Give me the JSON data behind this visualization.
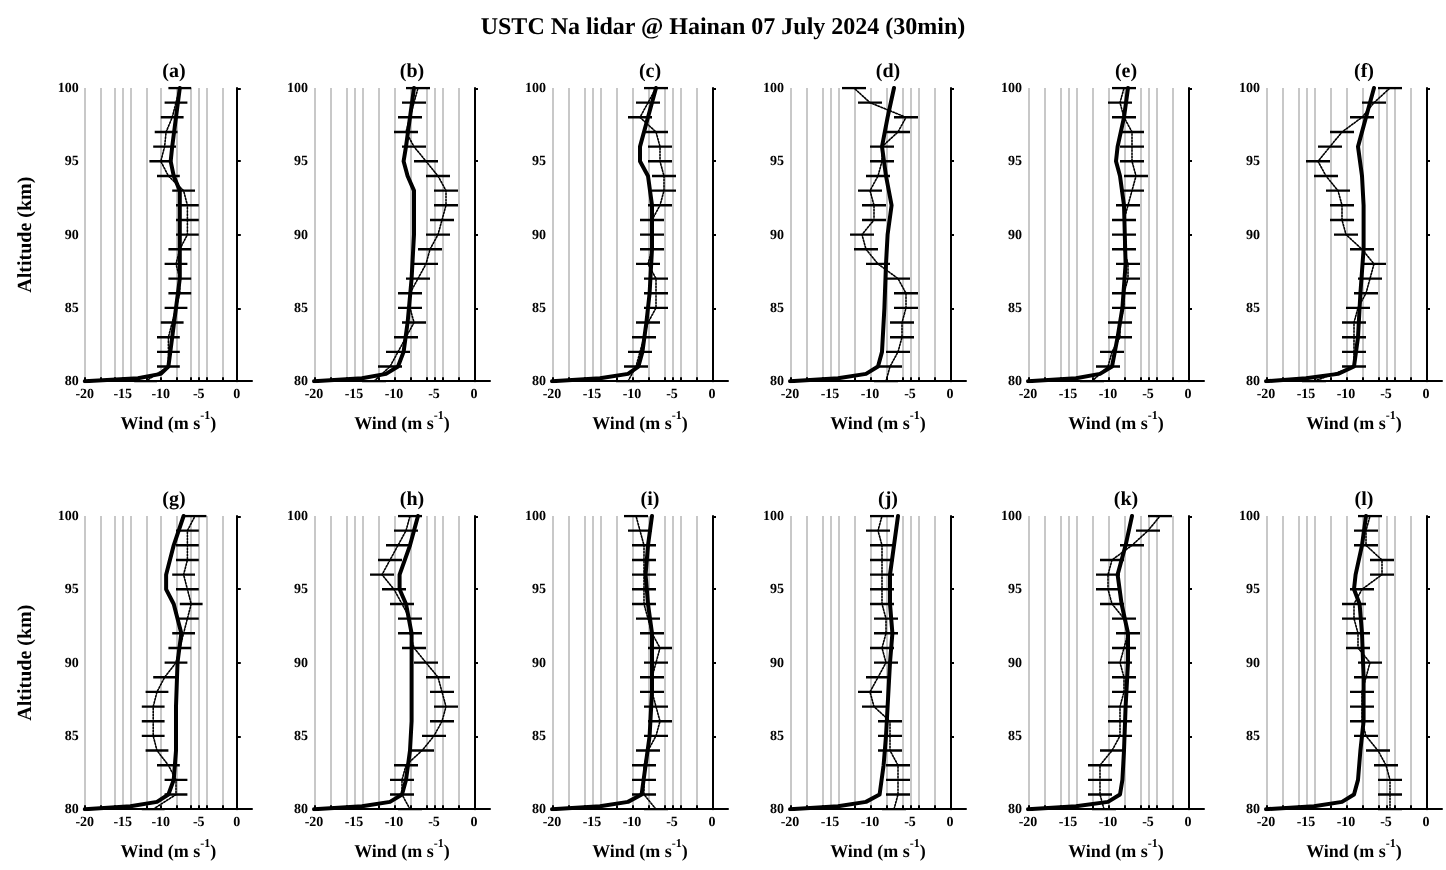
{
  "chart_data": [
    {
      "type": "line",
      "title": "(a)",
      "annotations": [
        "USTC Na lidar @ Hainan 07 July 2024 (30min)"
      ],
      "xlabel": "Wind (m s$^{-1}$)",
      "ylabel": "Altitude (km)",
      "xlim": [
        -20,
        2
      ],
      "xticks": [
        -20,
        {
          "value": -18,
          "label": null
        },
        {
          "value": -16,
          "label": null
        },
        -15,
        {
          "value": -14,
          "label": null
        },
        {
          "value": -12,
          "label": null
        },
        -10,
        {
          "value": -8,
          "label": null
        },
        {
          "value": -6,
          "label": null
        },
        -5,
        {
          "value": -4,
          "label": null
        },
        {
          "value": -2,
          "label": null
        },
        0
      ],
      "ylim": [
        80,
        100
      ],
      "yticks": [
        80,
        85,
        90,
        95,
        100
      ],
      "grid": "x",
      "series": [
        {
          "color": "#000000",
          "line_style": "dotted",
          "values": [
            80,
            81,
            82,
            83,
            84,
            85,
            86,
            87,
            88,
            89,
            90,
            91,
            92,
            93,
            94,
            95,
            96,
            97,
            98,
            99,
            100
          ],
          "x": [
            -12,
            -9,
            -9,
            -9,
            -8.5,
            -8,
            -7.5,
            -7.5,
            -8,
            -7.5,
            -6.5,
            -6.5,
            -6.5,
            -7,
            -9,
            -10,
            -9.5,
            -9.3,
            -8.5,
            -8,
            -7.5
          ],
          "xerrors": [
            1.5,
            1.5,
            1.5,
            1.5,
            1.5,
            1.5,
            1.5,
            1.5,
            1.5,
            1.5,
            1.5,
            1.5,
            1.5,
            1.5,
            1.5,
            1.5,
            1.5,
            1.5,
            1.5,
            1.5,
            1.5
          ]
        },
        {
          "color": "#000000",
          "line_style": "solid",
          "values": [
            80,
            80.2,
            80.5,
            81,
            83,
            85,
            87,
            90,
            93,
            94,
            95,
            96,
            98,
            100
          ],
          "x": [
            -20,
            -13,
            -10,
            -9,
            -8.5,
            -8,
            -7.5,
            -7.5,
            -7.5,
            -8.3,
            -8.7,
            -8.5,
            -8,
            -7.5
          ]
        }
      ]
    },
    {
      "type": "line",
      "title": "(b)",
      "xlabel": "Wind (m s$^{-1}$)",
      "xlim": [
        -20,
        2
      ],
      "xticks": [
        -20,
        {
          "value": -18,
          "label": null
        },
        {
          "value": -16,
          "label": null
        },
        -15,
        {
          "value": -14,
          "label": null
        },
        {
          "value": -12,
          "label": null
        },
        -10,
        {
          "value": -8,
          "label": null
        },
        {
          "value": -6,
          "label": null
        },
        -5,
        {
          "value": -4,
          "label": null
        },
        {
          "value": -2,
          "label": null
        },
        0
      ],
      "ylim": [
        80,
        100
      ],
      "yticks": [
        80,
        85,
        90,
        95,
        100
      ],
      "grid": "x",
      "series": [
        {
          "color": "#000000",
          "line_style": "dotted",
          "values": [
            80,
            81,
            82,
            83,
            84,
            85,
            86,
            87,
            88,
            89,
            90,
            91,
            92,
            93,
            94,
            95,
            96,
            97,
            98,
            99,
            100
          ],
          "x": [
            -12.5,
            -10.5,
            -9.5,
            -8.5,
            -7.5,
            -8,
            -8,
            -7,
            -6,
            -5.5,
            -4.5,
            -4,
            -3.5,
            -3.5,
            -4.5,
            -6,
            -7.5,
            -8.5,
            -8,
            -7.5,
            -7
          ],
          "xerrors": [
            1.5,
            1.5,
            1.5,
            1.5,
            1.5,
            1.5,
            1.5,
            1.5,
            1.5,
            1.5,
            1.5,
            1.5,
            1.5,
            1.5,
            1.5,
            1.5,
            1.5,
            1.5,
            1.5,
            1.5,
            1.5
          ]
        },
        {
          "color": "#000000",
          "line_style": "solid",
          "values": [
            80,
            80.2,
            80.5,
            81,
            82,
            84,
            87,
            90,
            93,
            94,
            95,
            96,
            98,
            100
          ],
          "x": [
            -20,
            -14,
            -11,
            -9.5,
            -8.8,
            -8.3,
            -7.8,
            -7.5,
            -7.5,
            -8.3,
            -8.8,
            -8.5,
            -8,
            -7.5
          ]
        }
      ]
    },
    {
      "type": "line",
      "title": "(c)",
      "xlabel": "Wind (m s$^{-1}$)",
      "xlim": [
        -20,
        2
      ],
      "xticks": [
        -20,
        {
          "value": -18,
          "label": null
        },
        {
          "value": -16,
          "label": null
        },
        -15,
        {
          "value": -14,
          "label": null
        },
        {
          "value": -12,
          "label": null
        },
        -10,
        {
          "value": -8,
          "label": null
        },
        {
          "value": -6,
          "label": null
        },
        -5,
        {
          "value": -4,
          "label": null
        },
        {
          "value": -2,
          "label": null
        },
        0
      ],
      "ylim": [
        80,
        100
      ],
      "yticks": [
        80,
        85,
        90,
        95,
        100
      ],
      "grid": "x",
      "series": [
        {
          "color": "#000000",
          "line_style": "dotted",
          "values": [
            80,
            81,
            82,
            83,
            84,
            85,
            86,
            87,
            88,
            89,
            90,
            91,
            92,
            93,
            94,
            95,
            96,
            97,
            98,
            99,
            100
          ],
          "x": [
            -10.5,
            -9.5,
            -9,
            -8.5,
            -8,
            -7,
            -7,
            -7,
            -8,
            -7.5,
            -7.5,
            -7.5,
            -6.5,
            -6,
            -6,
            -6.5,
            -6.5,
            -7,
            -9,
            -8,
            -7
          ],
          "xerrors": [
            1.5,
            1.5,
            1.5,
            1.5,
            1.5,
            1.5,
            1.5,
            1.5,
            1.5,
            1.5,
            1.5,
            1.5,
            1.5,
            1.5,
            1.5,
            1.5,
            1.5,
            1.5,
            1.5,
            1.5,
            1.5
          ]
        },
        {
          "color": "#000000",
          "line_style": "solid",
          "values": [
            80,
            80.2,
            80.5,
            81,
            82,
            84,
            86,
            89,
            92,
            94,
            95,
            96,
            98,
            100
          ],
          "x": [
            -20,
            -14,
            -10.5,
            -9.2,
            -8.7,
            -8.2,
            -7.8,
            -7.5,
            -7.5,
            -8,
            -9,
            -9,
            -8,
            -7
          ]
        }
      ]
    },
    {
      "type": "line",
      "title": "(d)",
      "xlabel": "Wind (m s$^{-1}$)",
      "xlim": [
        -20,
        2
      ],
      "xticks": [
        -20,
        {
          "value": -18,
          "label": null
        },
        {
          "value": -16,
          "label": null
        },
        -15,
        {
          "value": -14,
          "label": null
        },
        {
          "value": -12,
          "label": null
        },
        -10,
        {
          "value": -8,
          "label": null
        },
        {
          "value": -6,
          "label": null
        },
        -5,
        {
          "value": -4,
          "label": null
        },
        {
          "value": -2,
          "label": null
        },
        0
      ],
      "ylim": [
        80,
        100
      ],
      "yticks": [
        80,
        85,
        90,
        95,
        100
      ],
      "grid": "x",
      "series": [
        {
          "color": "#000000",
          "line_style": "dotted",
          "values": [
            80,
            81,
            82,
            83,
            84,
            85,
            86,
            87,
            88,
            89,
            90,
            91,
            92,
            93,
            94,
            95,
            96,
            97,
            98,
            99,
            100
          ],
          "x": [
            -8,
            -7.5,
            -6.5,
            -6,
            -6,
            -5.5,
            -5.5,
            -6.5,
            -9,
            -10.5,
            -11,
            -9.5,
            -9.5,
            -10,
            -9,
            -8.5,
            -8.5,
            -6.5,
            -5.5,
            -10,
            -12
          ],
          "xerrors": [
            1.5,
            1.5,
            1.5,
            1.5,
            1.5,
            1.5,
            1.5,
            1.5,
            1.5,
            1.5,
            1.5,
            1.5,
            1.5,
            1.5,
            1.5,
            1.5,
            1.5,
            1.5,
            1.5,
            1.5,
            1.5
          ]
        },
        {
          "color": "#000000",
          "line_style": "solid",
          "values": [
            80,
            80.2,
            80.5,
            81,
            82,
            85,
            88,
            90,
            92,
            94,
            96,
            98,
            100
          ],
          "x": [
            -20,
            -14,
            -10.5,
            -9,
            -8.5,
            -8.2,
            -8,
            -7.8,
            -7.3,
            -8,
            -8.5,
            -7.8,
            -7
          ]
        }
      ]
    },
    {
      "type": "line",
      "title": "(e)",
      "xlabel": "Wind (m s$^{-1}$)",
      "xlim": [
        -20,
        2
      ],
      "xticks": [
        -20,
        {
          "value": -18,
          "label": null
        },
        {
          "value": -16,
          "label": null
        },
        -15,
        {
          "value": -14,
          "label": null
        },
        {
          "value": -12,
          "label": null
        },
        -10,
        {
          "value": -8,
          "label": null
        },
        {
          "value": -6,
          "label": null
        },
        -5,
        {
          "value": -4,
          "label": null
        },
        {
          "value": -2,
          "label": null
        },
        0
      ],
      "ylim": [
        80,
        100
      ],
      "yticks": [
        80,
        85,
        90,
        95,
        100
      ],
      "grid": "x",
      "series": [
        {
          "color": "#000000",
          "line_style": "dotted",
          "values": [
            80,
            81,
            82,
            83,
            84,
            85,
            86,
            87,
            88,
            89,
            90,
            91,
            92,
            93,
            94,
            95,
            96,
            97,
            98,
            99,
            100
          ],
          "x": [
            -12,
            -10,
            -9.5,
            -8.5,
            -8.5,
            -8,
            -8,
            -7.5,
            -7.5,
            -8,
            -8,
            -8,
            -7.5,
            -7,
            -6.5,
            -7,
            -7,
            -7,
            -8,
            -8.5,
            -8
          ],
          "xerrors": [
            1.5,
            1.5,
            1.5,
            1.5,
            1.5,
            1.5,
            1.5,
            1.5,
            1.5,
            1.5,
            1.5,
            1.5,
            1.5,
            1.5,
            1.5,
            1.5,
            1.5,
            1.5,
            1.5,
            1.5,
            1.5
          ]
        },
        {
          "color": "#000000",
          "line_style": "solid",
          "values": [
            80,
            80.2,
            80.5,
            81,
            83,
            85,
            88,
            92,
            94,
            95,
            96,
            98,
            100
          ],
          "x": [
            -20,
            -14,
            -11,
            -9.5,
            -8.8,
            -8.2,
            -7.8,
            -8,
            -8.5,
            -9,
            -8.8,
            -8,
            -7.5
          ]
        }
      ]
    },
    {
      "type": "line",
      "title": "(f)",
      "xlabel": "Wind (m s$^{-1}$)",
      "xlim": [
        -20,
        2
      ],
      "xticks": [
        -20,
        {
          "value": -18,
          "label": null
        },
        {
          "value": -16,
          "label": null
        },
        -15,
        {
          "value": -14,
          "label": null
        },
        {
          "value": -12,
          "label": null
        },
        -10,
        {
          "value": -8,
          "label": null
        },
        {
          "value": -6,
          "label": null
        },
        -5,
        {
          "value": -4,
          "label": null
        },
        {
          "value": -2,
          "label": null
        },
        0
      ],
      "ylim": [
        80,
        100
      ],
      "yticks": [
        80,
        85,
        90,
        95,
        100
      ],
      "grid": "x",
      "series": [
        {
          "color": "#000000",
          "line_style": "dotted",
          "values": [
            80,
            81,
            82,
            83,
            84,
            85,
            86,
            87,
            88,
            89,
            90,
            91,
            92,
            93,
            94,
            95,
            96,
            97,
            98,
            99,
            100
          ],
          "x": [
            -14,
            -9,
            -9,
            -9,
            -9,
            -8.5,
            -7.5,
            -7,
            -6.5,
            -8,
            -10,
            -10.5,
            -10.5,
            -11,
            -12.5,
            -13.5,
            -12,
            -10.5,
            -8,
            -6.5,
            -4.5
          ],
          "xerrors": [
            1.5,
            1.5,
            1.5,
            1.5,
            1.5,
            1.5,
            1.5,
            1.5,
            1.5,
            1.5,
            1.5,
            1.5,
            1.5,
            1.5,
            1.5,
            1.5,
            1.5,
            1.5,
            1.5,
            1.5,
            1.5
          ]
        },
        {
          "color": "#000000",
          "line_style": "solid",
          "values": [
            80,
            80.2,
            80.5,
            81,
            83,
            86,
            89,
            92,
            94,
            96,
            98,
            100
          ],
          "x": [
            -20,
            -15,
            -11,
            -9,
            -8.5,
            -8.2,
            -7.8,
            -7.8,
            -8,
            -8.5,
            -7.5,
            -6.5
          ]
        }
      ]
    },
    {
      "type": "line",
      "title": "(g)",
      "xlabel": "Wind (m s$^{-1}$)",
      "ylabel": "Altitude (km)",
      "xlim": [
        -20,
        2
      ],
      "xticks": [
        -20,
        {
          "value": -18,
          "label": null
        },
        {
          "value": -16,
          "label": null
        },
        -15,
        {
          "value": -14,
          "label": null
        },
        {
          "value": -12,
          "label": null
        },
        -10,
        {
          "value": -8,
          "label": null
        },
        {
          "value": -6,
          "label": null
        },
        -5,
        {
          "value": -4,
          "label": null
        },
        {
          "value": -2,
          "label": null
        },
        0
      ],
      "ylim": [
        80,
        100
      ],
      "yticks": [
        80,
        85,
        90,
        95,
        100
      ],
      "grid": "x",
      "series": [
        {
          "color": "#000000",
          "line_style": "dotted",
          "values": [
            80,
            81,
            82,
            83,
            84,
            85,
            86,
            87,
            88,
            89,
            90,
            91,
            92,
            93,
            94,
            95,
            96,
            97,
            98,
            99,
            100
          ],
          "x": [
            -11,
            -8,
            -8,
            -9,
            -10.5,
            -11,
            -11,
            -11,
            -10.5,
            -9.5,
            -8,
            -7.5,
            -7,
            -6.5,
            -6,
            -6.5,
            -7,
            -6.5,
            -6.5,
            -6.5,
            -5.5
          ],
          "xerrors": [
            1.5,
            1.5,
            1.5,
            1.5,
            1.5,
            1.5,
            1.5,
            1.5,
            1.5,
            1.5,
            1.5,
            1.5,
            1.5,
            1.5,
            1.5,
            1.5,
            1.5,
            1.5,
            1.5,
            1.5,
            1.5
          ]
        },
        {
          "color": "#000000",
          "line_style": "solid",
          "values": [
            80,
            80.2,
            80.5,
            81,
            82,
            84,
            87,
            90,
            92,
            94,
            95,
            96,
            98,
            100
          ],
          "x": [
            -20,
            -14,
            -10.5,
            -9,
            -8.3,
            -8,
            -8,
            -7.8,
            -7.3,
            -8.3,
            -9.3,
            -9.3,
            -8.3,
            -7
          ]
        }
      ]
    },
    {
      "type": "line",
      "title": "(h)",
      "xlabel": "Wind (m s$^{-1}$)",
      "xlim": [
        -20,
        2
      ],
      "xticks": [
        -20,
        {
          "value": -18,
          "label": null
        },
        {
          "value": -16,
          "label": null
        },
        -15,
        {
          "value": -14,
          "label": null
        },
        {
          "value": -12,
          "label": null
        },
        -10,
        {
          "value": -8,
          "label": null
        },
        {
          "value": -6,
          "label": null
        },
        -5,
        {
          "value": -4,
          "label": null
        },
        {
          "value": -2,
          "label": null
        },
        0
      ],
      "ylim": [
        80,
        100
      ],
      "yticks": [
        80,
        85,
        90,
        95,
        100
      ],
      "grid": "x",
      "series": [
        {
          "color": "#000000",
          "line_style": "dotted",
          "values": [
            80,
            81,
            82,
            83,
            84,
            85,
            86,
            87,
            88,
            89,
            90,
            91,
            92,
            93,
            94,
            95,
            96,
            97,
            98,
            99,
            100
          ],
          "x": [
            -8,
            -9,
            -9,
            -8.5,
            -6.5,
            -5,
            -4,
            -3.5,
            -4,
            -4.5,
            -6,
            -7.5,
            -8,
            -8,
            -9,
            -10,
            -11.5,
            -10.5,
            -9.5,
            -8.5,
            -8
          ],
          "xerrors": [
            1.5,
            1.5,
            1.5,
            1.5,
            1.5,
            1.5,
            1.5,
            1.5,
            1.5,
            1.5,
            1.5,
            1.5,
            1.5,
            1.5,
            1.5,
            1.5,
            1.5,
            1.5,
            1.5,
            1.5,
            1.5
          ]
        },
        {
          "color": "#000000",
          "line_style": "solid",
          "values": [
            80,
            80.2,
            80.5,
            81,
            82,
            84,
            86,
            89,
            92,
            94,
            95,
            96,
            98,
            100
          ],
          "x": [
            -20,
            -14,
            -10.5,
            -9,
            -8.5,
            -8,
            -7.8,
            -7.8,
            -7.8,
            -8.5,
            -9.3,
            -9.3,
            -8,
            -7
          ]
        }
      ]
    },
    {
      "type": "line",
      "title": "(i)",
      "xlabel": "Wind (m s$^{-1}$)",
      "xlim": [
        -20,
        2
      ],
      "xticks": [
        -20,
        {
          "value": -18,
          "label": null
        },
        {
          "value": -16,
          "label": null
        },
        -15,
        {
          "value": -14,
          "label": null
        },
        {
          "value": -12,
          "label": null
        },
        -10,
        {
          "value": -8,
          "label": null
        },
        {
          "value": -6,
          "label": null
        },
        -5,
        {
          "value": -4,
          "label": null
        },
        {
          "value": -2,
          "label": null
        },
        0
      ],
      "ylim": [
        80,
        100
      ],
      "yticks": [
        80,
        85,
        90,
        95,
        100
      ],
      "grid": "x",
      "series": [
        {
          "color": "#000000",
          "line_style": "dotted",
          "values": [
            80,
            81,
            82,
            83,
            84,
            85,
            86,
            87,
            88,
            89,
            90,
            91,
            92,
            93,
            94,
            95,
            96,
            97,
            98,
            99,
            100
          ],
          "x": [
            -7,
            -8.5,
            -8.5,
            -8.5,
            -8,
            -7,
            -6.5,
            -7,
            -7.5,
            -7.5,
            -7,
            -6.5,
            -7.5,
            -8,
            -8.5,
            -8.5,
            -8.5,
            -8.5,
            -8.5,
            -9,
            -9.5
          ],
          "xerrors": [
            1.5,
            1.5,
            1.5,
            1.5,
            1.5,
            1.5,
            1.5,
            1.5,
            1.5,
            1.5,
            1.5,
            1.5,
            1.5,
            1.5,
            1.5,
            1.5,
            1.5,
            1.5,
            1.5,
            1.5,
            1.5
          ]
        },
        {
          "color": "#000000",
          "line_style": "solid",
          "values": [
            80,
            80.2,
            80.5,
            81,
            83,
            85,
            88,
            92,
            94,
            96,
            98,
            100
          ],
          "x": [
            -20,
            -14,
            -10.5,
            -8.8,
            -8.3,
            -7.8,
            -7.5,
            -7.5,
            -8,
            -8.3,
            -8,
            -7.5
          ]
        }
      ]
    },
    {
      "type": "line",
      "title": "(j)",
      "xlabel": "Wind (m s$^{-1}$)",
      "xlim": [
        -20,
        2
      ],
      "xticks": [
        -20,
        {
          "value": -18,
          "label": null
        },
        {
          "value": -16,
          "label": null
        },
        -15,
        {
          "value": -14,
          "label": null
        },
        {
          "value": -12,
          "label": null
        },
        -10,
        {
          "value": -8,
          "label": null
        },
        {
          "value": -6,
          "label": null
        },
        -5,
        {
          "value": -4,
          "label": null
        },
        {
          "value": -2,
          "label": null
        },
        0
      ],
      "ylim": [
        80,
        100
      ],
      "yticks": [
        80,
        85,
        90,
        95,
        100
      ],
      "grid": "x",
      "series": [
        {
          "color": "#000000",
          "line_style": "dotted",
          "values": [
            80,
            81,
            82,
            83,
            84,
            85,
            86,
            87,
            88,
            89,
            90,
            91,
            92,
            93,
            94,
            95,
            96,
            97,
            98,
            99,
            100
          ],
          "x": [
            -7,
            -6.5,
            -6.5,
            -6.5,
            -7.5,
            -7.5,
            -7.5,
            -9.5,
            -10,
            -9,
            -8,
            -8.5,
            -8,
            -8,
            -8.5,
            -8.5,
            -8.5,
            -8.5,
            -8.5,
            -9,
            -8.5
          ],
          "xerrors": [
            1.5,
            1.5,
            1.5,
            1.5,
            1.5,
            1.5,
            1.5,
            1.5,
            1.5,
            1.5,
            1.5,
            1.5,
            1.5,
            1.5,
            1.5,
            1.5,
            1.5,
            1.5,
            1.5,
            1.5,
            1.5
          ]
        },
        {
          "color": "#000000",
          "line_style": "solid",
          "values": [
            80,
            80.2,
            80.5,
            81,
            83,
            85,
            87,
            90,
            92,
            94,
            96,
            98,
            100
          ],
          "x": [
            -20,
            -14,
            -10.5,
            -8.8,
            -8.3,
            -8,
            -7.8,
            -7.5,
            -7.2,
            -7.5,
            -7.5,
            -7,
            -6.5
          ]
        }
      ]
    },
    {
      "type": "line",
      "title": "(k)",
      "xlabel": "Wind (m s$^{-1}$)",
      "xlim": [
        -20,
        2
      ],
      "xticks": [
        -20,
        {
          "value": -18,
          "label": null
        },
        {
          "value": -16,
          "label": null
        },
        -15,
        {
          "value": -14,
          "label": null
        },
        {
          "value": -12,
          "label": null
        },
        -10,
        {
          "value": -8,
          "label": null
        },
        {
          "value": -6,
          "label": null
        },
        -5,
        {
          "value": -4,
          "label": null
        },
        {
          "value": -2,
          "label": null
        },
        0
      ],
      "ylim": [
        80,
        100
      ],
      "yticks": [
        80,
        85,
        90,
        95,
        100
      ],
      "grid": "x",
      "series": [
        {
          "color": "#000000",
          "line_style": "dotted",
          "values": [
            80,
            81,
            82,
            83,
            84,
            85,
            86,
            87,
            88,
            89,
            90,
            91,
            92,
            93,
            94,
            95,
            96,
            97,
            98,
            99,
            100
          ],
          "x": [
            -10.5,
            -11,
            -11,
            -11,
            -9.5,
            -8.5,
            -8.5,
            -8.5,
            -8,
            -8,
            -8.5,
            -8,
            -7.5,
            -8,
            -9.5,
            -10,
            -10,
            -9.5,
            -7,
            -5,
            -3.5
          ],
          "xerrors": [
            1.5,
            1.5,
            1.5,
            1.5,
            1.5,
            1.5,
            1.5,
            1.5,
            1.5,
            1.5,
            1.5,
            1.5,
            1.5,
            1.5,
            1.5,
            1.5,
            1.5,
            1.5,
            1.5,
            1.5,
            1.5
          ]
        },
        {
          "color": "#000000",
          "line_style": "solid",
          "values": [
            80,
            80.2,
            80.5,
            81,
            82,
            84,
            87,
            90,
            92,
            94,
            96,
            98,
            100
          ],
          "x": [
            -20,
            -14,
            -10,
            -8.5,
            -8.2,
            -8,
            -7.8,
            -7.5,
            -7.5,
            -8.3,
            -8.8,
            -7.8,
            -7
          ]
        }
      ]
    },
    {
      "type": "line",
      "title": "(l)",
      "xlabel": "Wind (m s$^{-1}$)",
      "xlim": [
        -20,
        2
      ],
      "xticks": [
        -20,
        {
          "value": -18,
          "label": null
        },
        {
          "value": -16,
          "label": null
        },
        -15,
        {
          "value": -14,
          "label": null
        },
        {
          "value": -12,
          "label": null
        },
        -10,
        {
          "value": -8,
          "label": null
        },
        {
          "value": -6,
          "label": null
        },
        -5,
        {
          "value": -4,
          "label": null
        },
        {
          "value": -2,
          "label": null
        },
        0
      ],
      "ylim": [
        80,
        100
      ],
      "yticks": [
        80,
        85,
        90,
        95,
        100
      ],
      "grid": "x",
      "series": [
        {
          "color": "#000000",
          "line_style": "dotted",
          "values": [
            80,
            81,
            82,
            83,
            84,
            85,
            86,
            87,
            88,
            89,
            90,
            91,
            92,
            93,
            94,
            95,
            96,
            97,
            98,
            99,
            100
          ],
          "x": [
            -4.5,
            -4.5,
            -4.5,
            -5,
            -6,
            -7.5,
            -8,
            -8,
            -8,
            -7.5,
            -7,
            -8.5,
            -8.5,
            -9,
            -9,
            -8,
            -5.5,
            -5.5,
            -7.5,
            -7.5,
            -7
          ],
          "xerrors": [
            1.5,
            1.5,
            1.5,
            1.5,
            1.5,
            1.5,
            1.5,
            1.5,
            1.5,
            1.5,
            1.5,
            1.5,
            1.5,
            1.5,
            1.5,
            1.5,
            1.5,
            1.5,
            1.5,
            1.5,
            1.5
          ]
        },
        {
          "color": "#000000",
          "line_style": "solid",
          "values": [
            80,
            80.2,
            80.5,
            81,
            82,
            84,
            86,
            89,
            92,
            94,
            95,
            96,
            98,
            100
          ],
          "x": [
            -20,
            -14,
            -10.5,
            -9,
            -8.5,
            -8.2,
            -7.8,
            -7.8,
            -8,
            -8.3,
            -9,
            -8.8,
            -8,
            -7.5
          ]
        }
      ]
    }
  ]
}
